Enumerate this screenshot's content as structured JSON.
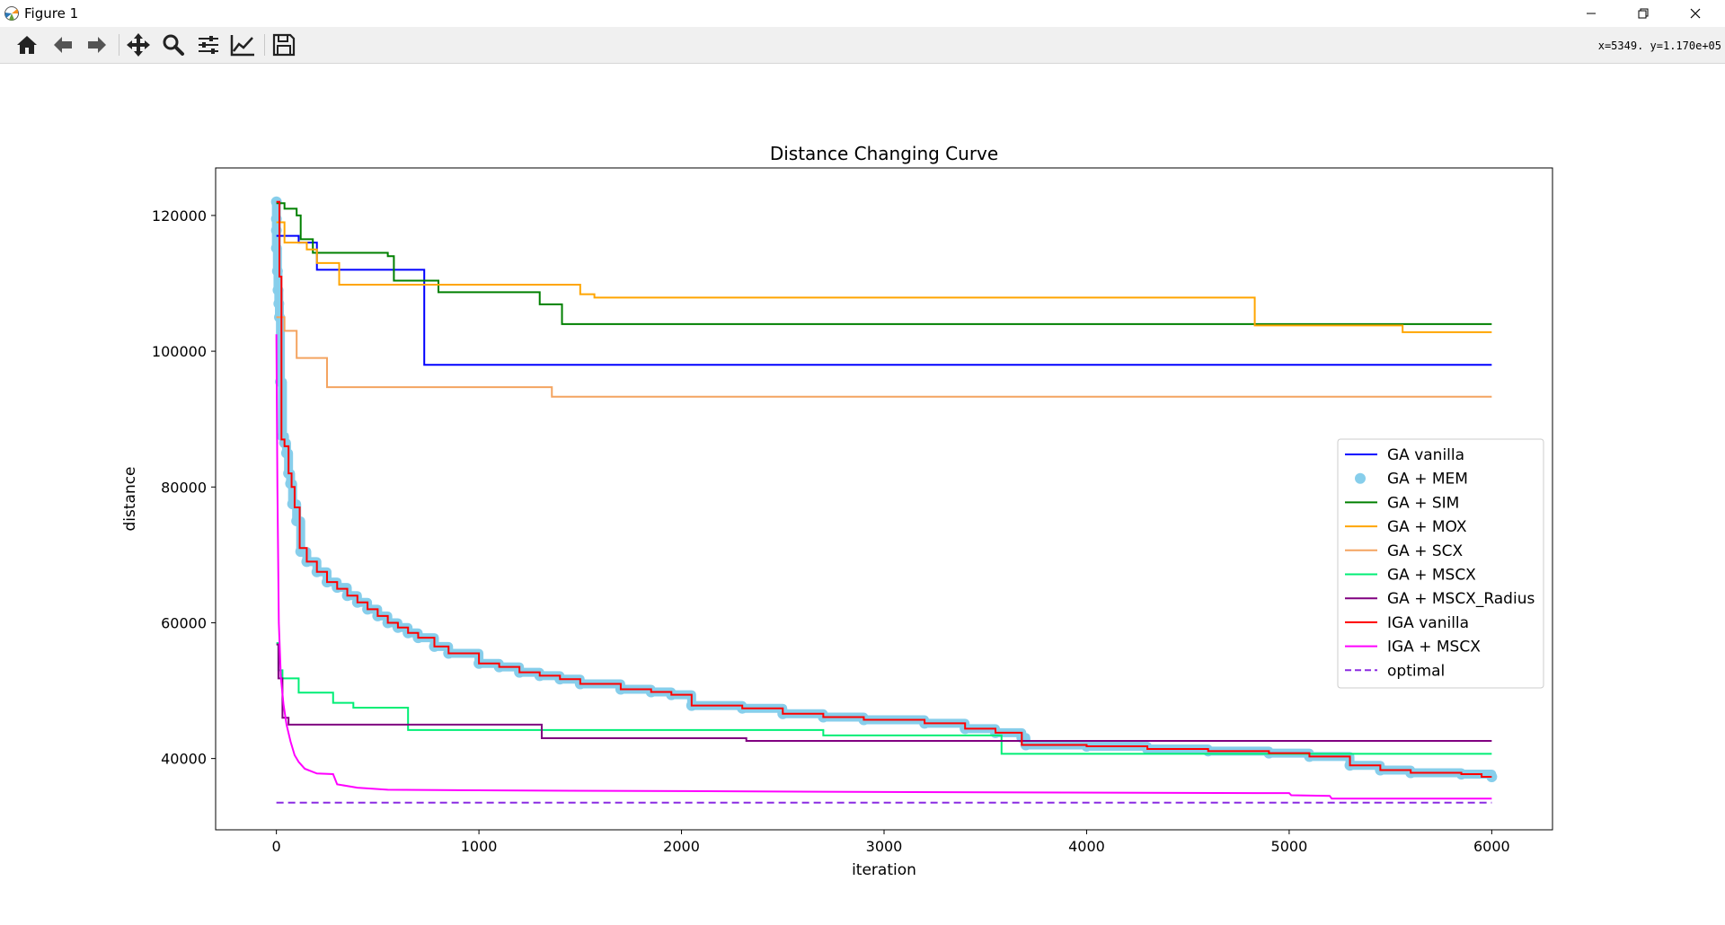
{
  "window": {
    "title": "Figure 1",
    "coords_readout": "x=5349.  y=1.170e+05"
  },
  "toolbar": {
    "buttons": [
      {
        "name": "home-button",
        "icon": "home-icon"
      },
      {
        "name": "back-button",
        "icon": "arrow-left-icon"
      },
      {
        "name": "forward-button",
        "icon": "arrow-right-icon"
      },
      {
        "name": "pan-button",
        "icon": "move-icon"
      },
      {
        "name": "zoom-button",
        "icon": "search-icon"
      },
      {
        "name": "configure-subplots-button",
        "icon": "sliders-icon"
      },
      {
        "name": "edit-axes-button",
        "icon": "line-chart-icon"
      },
      {
        "name": "save-button",
        "icon": "floppy-icon"
      }
    ]
  },
  "chart_data": {
    "type": "line",
    "title": "Distance Changing Curve",
    "xlabel": "iteration",
    "ylabel": "distance",
    "xlim": [
      -300,
      6300
    ],
    "ylim": [
      29500,
      127000
    ],
    "xticks": [
      0,
      1000,
      2000,
      3000,
      4000,
      5000,
      6000
    ],
    "xtick_labels": [
      "0",
      "1000",
      "2000",
      "3000",
      "4000",
      "5000",
      "6000"
    ],
    "yticks": [
      40000,
      60000,
      80000,
      100000,
      120000
    ],
    "ytick_labels": [
      "40000",
      "60000",
      "80000",
      "100000",
      "120000"
    ],
    "grid": false,
    "legend_position": "center-right",
    "series": [
      {
        "name": "GA vanilla",
        "color": "#0000ff",
        "style": "step",
        "points": [
          [
            0,
            117000
          ],
          [
            110,
            116000
          ],
          [
            200,
            112000
          ],
          [
            730,
            98000
          ],
          [
            6000,
            98000
          ]
        ]
      },
      {
        "name": "GA + MEM",
        "color": "#87ceeb",
        "style": "markers",
        "points": [
          [
            0,
            122000
          ],
          [
            0,
            119500
          ],
          [
            0,
            117800
          ],
          [
            0,
            115200
          ],
          [
            5,
            111800
          ],
          [
            8,
            109000
          ],
          [
            12,
            107000
          ],
          [
            15,
            105000
          ],
          [
            20,
            95500
          ],
          [
            30,
            87500
          ],
          [
            40,
            86500
          ],
          [
            50,
            85000
          ],
          [
            60,
            82000
          ],
          [
            70,
            80500
          ],
          [
            80,
            77500
          ],
          [
            100,
            75000
          ],
          [
            120,
            70500
          ],
          [
            150,
            69000
          ],
          [
            200,
            67500
          ],
          [
            250,
            66000
          ],
          [
            300,
            65200
          ],
          [
            350,
            64000
          ],
          [
            400,
            63000
          ],
          [
            450,
            62000
          ],
          [
            500,
            61000
          ],
          [
            550,
            60000
          ],
          [
            600,
            59300
          ],
          [
            650,
            58500
          ],
          [
            700,
            57800
          ],
          [
            780,
            56500
          ],
          [
            850,
            55500
          ],
          [
            1000,
            54000
          ],
          [
            1100,
            53500
          ],
          [
            1200,
            52700
          ],
          [
            1300,
            52200
          ],
          [
            1400,
            51700
          ],
          [
            1500,
            51000
          ],
          [
            1700,
            50200
          ],
          [
            1850,
            49800
          ],
          [
            1950,
            49400
          ],
          [
            2050,
            47800
          ],
          [
            2300,
            47400
          ],
          [
            2500,
            46600
          ],
          [
            2700,
            46100
          ],
          [
            2900,
            45700
          ],
          [
            3200,
            45200
          ],
          [
            3400,
            44400
          ],
          [
            3550,
            43800
          ],
          [
            3680,
            43100
          ],
          [
            3700,
            42000
          ],
          [
            4000,
            41800
          ],
          [
            4300,
            41400
          ],
          [
            4600,
            41100
          ],
          [
            4900,
            40800
          ],
          [
            5100,
            40300
          ],
          [
            5300,
            39000
          ],
          [
            5450,
            38300
          ],
          [
            5600,
            37900
          ],
          [
            5850,
            37700
          ],
          [
            6000,
            37300
          ]
        ]
      },
      {
        "name": "GA + SIM",
        "color": "#008000",
        "style": "step",
        "points": [
          [
            0,
            121800
          ],
          [
            40,
            121000
          ],
          [
            100,
            120000
          ],
          [
            120,
            116500
          ],
          [
            180,
            114500
          ],
          [
            550,
            114000
          ],
          [
            580,
            110400
          ],
          [
            800,
            108700
          ],
          [
            1300,
            106900
          ],
          [
            1410,
            104000
          ],
          [
            6000,
            104000
          ]
        ]
      },
      {
        "name": "GA + MOX",
        "color": "#ffa500",
        "style": "step",
        "points": [
          [
            0,
            119000
          ],
          [
            40,
            116000
          ],
          [
            150,
            115000
          ],
          [
            200,
            113000
          ],
          [
            310,
            109800
          ],
          [
            1500,
            108400
          ],
          [
            1570,
            107900
          ],
          [
            4830,
            103800
          ],
          [
            5560,
            102800
          ],
          [
            6000,
            102800
          ]
        ]
      },
      {
        "name": "GA + SCX",
        "color": "#f4a460",
        "style": "step",
        "points": [
          [
            0,
            105000
          ],
          [
            40,
            103000
          ],
          [
            100,
            99000
          ],
          [
            250,
            94700
          ],
          [
            1360,
            93300
          ],
          [
            6000,
            93300
          ]
        ]
      },
      {
        "name": "GA + MSCX",
        "color": "#00ee76",
        "style": "step",
        "points": [
          [
            0,
            57000
          ],
          [
            10,
            53000
          ],
          [
            30,
            51800
          ],
          [
            110,
            49700
          ],
          [
            280,
            48200
          ],
          [
            380,
            47500
          ],
          [
            650,
            44200
          ],
          [
            2700,
            43400
          ],
          [
            3580,
            40700
          ],
          [
            6000,
            40700
          ]
        ]
      },
      {
        "name": "GA + MSCX_Radius",
        "color": "#800080",
        "style": "step",
        "points": [
          [
            0,
            56800
          ],
          [
            10,
            51800
          ],
          [
            30,
            46000
          ],
          [
            60,
            45000
          ],
          [
            1310,
            43000
          ],
          [
            2320,
            42600
          ],
          [
            6000,
            42600
          ]
        ]
      },
      {
        "name": "IGA vanilla",
        "color": "#ff0000",
        "style": "step",
        "points": [
          [
            0,
            122000
          ],
          [
            15,
            111000
          ],
          [
            25,
            87000
          ],
          [
            40,
            86000
          ],
          [
            60,
            82000
          ],
          [
            75,
            80000
          ],
          [
            90,
            77000
          ],
          [
            115,
            71000
          ],
          [
            150,
            69000
          ],
          [
            200,
            67500
          ],
          [
            250,
            66000
          ],
          [
            300,
            65000
          ],
          [
            350,
            64000
          ],
          [
            400,
            63000
          ],
          [
            450,
            62000
          ],
          [
            500,
            61000
          ],
          [
            550,
            60000
          ],
          [
            600,
            59300
          ],
          [
            650,
            58500
          ],
          [
            700,
            57800
          ],
          [
            780,
            56500
          ],
          [
            850,
            55500
          ],
          [
            1000,
            54000
          ],
          [
            1100,
            53500
          ],
          [
            1200,
            52700
          ],
          [
            1300,
            52200
          ],
          [
            1400,
            51700
          ],
          [
            1500,
            51000
          ],
          [
            1700,
            50200
          ],
          [
            1850,
            49800
          ],
          [
            1950,
            49400
          ],
          [
            2050,
            47800
          ],
          [
            2300,
            47400
          ],
          [
            2500,
            46600
          ],
          [
            2700,
            46100
          ],
          [
            2900,
            45700
          ],
          [
            3200,
            45200
          ],
          [
            3400,
            44400
          ],
          [
            3550,
            43800
          ],
          [
            3680,
            42000
          ],
          [
            4000,
            41800
          ],
          [
            4300,
            41400
          ],
          [
            4600,
            41100
          ],
          [
            4900,
            40800
          ],
          [
            5100,
            40300
          ],
          [
            5300,
            39000
          ],
          [
            5450,
            38300
          ],
          [
            5600,
            37900
          ],
          [
            5850,
            37700
          ],
          [
            5950,
            37300
          ],
          [
            6000,
            37300
          ]
        ]
      },
      {
        "name": "IGA + MSCX",
        "color": "#ff00ff",
        "style": "line",
        "points": [
          [
            0,
            102500
          ],
          [
            5,
            80000
          ],
          [
            12,
            60000
          ],
          [
            22,
            52000
          ],
          [
            35,
            48000
          ],
          [
            50,
            45000
          ],
          [
            70,
            42500
          ],
          [
            90,
            40500
          ],
          [
            110,
            39500
          ],
          [
            140,
            38500
          ],
          [
            200,
            37800
          ],
          [
            280,
            37700
          ],
          [
            300,
            36200
          ],
          [
            400,
            35700
          ],
          [
            550,
            35400
          ],
          [
            1100,
            35300
          ],
          [
            2000,
            35200
          ],
          [
            2700,
            35100
          ],
          [
            3700,
            35000
          ],
          [
            5000,
            34900
          ],
          [
            5010,
            34600
          ],
          [
            5200,
            34500
          ],
          [
            5210,
            34100
          ],
          [
            6000,
            34100
          ]
        ]
      },
      {
        "name": "optimal",
        "color": "#8a2be2",
        "style": "dashed",
        "points": [
          [
            0,
            33500
          ],
          [
            6000,
            33500
          ]
        ]
      }
    ]
  }
}
